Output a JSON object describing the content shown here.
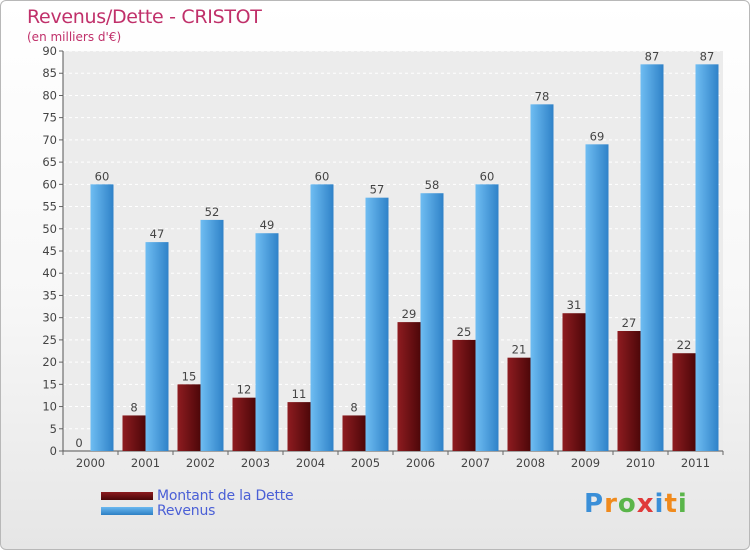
{
  "title": "Revenus/Dette - CRISTOT",
  "subtitle": "(en milliers d'€)",
  "logo": {
    "letters": [
      "P",
      "r",
      "o",
      "x",
      "i",
      "t",
      "i"
    ],
    "colors": [
      "#3a8fd8",
      "#f08a1c",
      "#5ab54a",
      "#e03a3a",
      "#3a8fd8",
      "#f08a1c",
      "#5ab54a"
    ]
  },
  "colors": {
    "dette": "#6b0f12",
    "revenus": "#4a9fe0",
    "title": "#c0306a",
    "legend_text": "#4a5fd6"
  },
  "chart_data": {
    "type": "bar",
    "title": "Revenus/Dette - CRISTOT",
    "ylabel": "(en milliers d'€)",
    "categories": [
      "2000",
      "2001",
      "2002",
      "2003",
      "2004",
      "2005",
      "2006",
      "2007",
      "2008",
      "2009",
      "2010",
      "2011"
    ],
    "series": [
      {
        "name": "Montant de la Dette",
        "values": [
          0,
          8,
          15,
          12,
          11,
          8,
          29,
          25,
          21,
          31,
          27,
          22
        ]
      },
      {
        "name": "Revenus",
        "values": [
          60,
          47,
          52,
          49,
          60,
          57,
          58,
          60,
          78,
          69,
          87,
          87
        ]
      }
    ],
    "ylim": [
      0,
      90
    ],
    "yticks": [
      0,
      5,
      10,
      15,
      20,
      25,
      30,
      35,
      40,
      45,
      50,
      55,
      60,
      65,
      70,
      75,
      80,
      85,
      90
    ],
    "grid": true,
    "legend": "bottom-left"
  }
}
